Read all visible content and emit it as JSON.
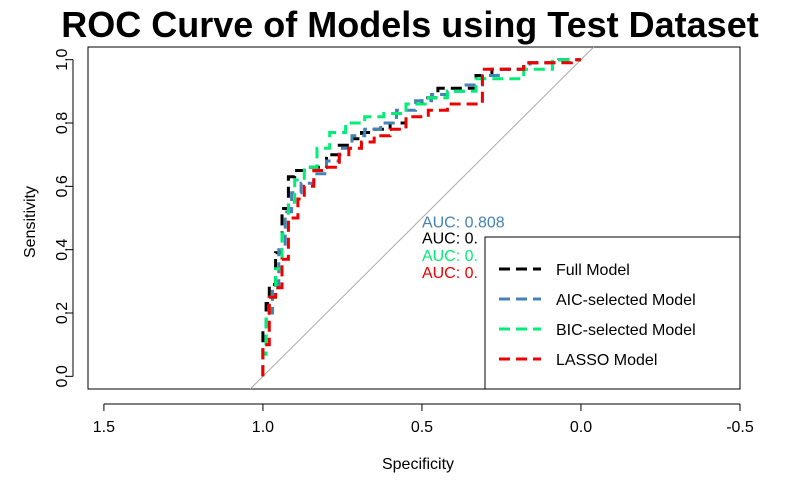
{
  "chart_data": {
    "type": "line",
    "title": "ROC Curve of Models using Test Dataset",
    "xlabel": "Specificity",
    "ylabel": "Sensitivity",
    "xlim": [
      1.55,
      -0.5
    ],
    "ylim": [
      -0.04,
      1.04
    ],
    "x_ticks": [
      1.5,
      1.0,
      0.5,
      0.0,
      -0.5
    ],
    "x_tick_labels": [
      "1.5",
      "1.0",
      "0.5",
      "0.0",
      "-0.5"
    ],
    "y_ticks": [
      0.0,
      0.2,
      0.4,
      0.6,
      0.8,
      1.0
    ],
    "y_tick_labels": [
      "0.0",
      "0.2",
      "0.4",
      "0.6",
      "0.8",
      "1.0"
    ],
    "grid": false,
    "legend_position": "bottom-right",
    "reference_line": {
      "from": [
        1.0,
        0.0
      ],
      "to": [
        0.0,
        1.0
      ],
      "color": "#aaaaaa"
    },
    "auc_labels": [
      {
        "text": "AUC: 0.808",
        "color": "#4682b4",
        "x": 0.5,
        "y": 0.47
      },
      {
        "text": "AUC: 0.",
        "color": "#000000",
        "x": 0.5,
        "y": 0.42
      },
      {
        "text": "AUC: 0.",
        "color": "#00ee76",
        "x": 0.5,
        "y": 0.365
      },
      {
        "text": "AUC: 0.",
        "color": "#ee0000",
        "x": 0.5,
        "y": 0.31
      }
    ],
    "series": [
      {
        "name": "Full Model",
        "color": "#000000",
        "x": [
          1.0,
          1.0,
          0.99,
          0.99,
          0.98,
          0.98,
          0.96,
          0.96,
          0.94,
          0.94,
          0.92,
          0.92,
          0.9,
          0.9,
          0.87,
          0.87,
          0.84,
          0.84,
          0.8,
          0.8,
          0.76,
          0.76,
          0.72,
          0.72,
          0.69,
          0.69,
          0.65,
          0.65,
          0.6,
          0.6,
          0.55,
          0.55,
          0.5,
          0.5,
          0.45,
          0.45,
          0.4,
          0.4,
          0.33,
          0.33,
          0.28,
          0.28,
          0.18,
          0.18,
          0.08,
          0.08,
          0.0
        ],
        "y": [
          0.0,
          0.15,
          0.15,
          0.23,
          0.23,
          0.29,
          0.29,
          0.39,
          0.39,
          0.53,
          0.53,
          0.63,
          0.63,
          0.65,
          0.65,
          0.66,
          0.66,
          0.66,
          0.66,
          0.7,
          0.7,
          0.73,
          0.73,
          0.75,
          0.75,
          0.77,
          0.77,
          0.78,
          0.78,
          0.8,
          0.8,
          0.86,
          0.86,
          0.88,
          0.88,
          0.91,
          0.91,
          0.91,
          0.91,
          0.95,
          0.95,
          0.97,
          0.97,
          0.99,
          0.99,
          1.0,
          1.0
        ]
      },
      {
        "name": "AIC-selected Model",
        "color": "#4682b4",
        "x": [
          1.0,
          1.0,
          0.99,
          0.99,
          0.97,
          0.97,
          0.95,
          0.95,
          0.93,
          0.93,
          0.91,
          0.91,
          0.88,
          0.88,
          0.84,
          0.84,
          0.8,
          0.8,
          0.76,
          0.76,
          0.72,
          0.72,
          0.68,
          0.68,
          0.63,
          0.63,
          0.58,
          0.58,
          0.52,
          0.52,
          0.47,
          0.47,
          0.42,
          0.42,
          0.37,
          0.37,
          0.31,
          0.31,
          0.26,
          0.26,
          0.16,
          0.16,
          0.07,
          0.07,
          0.0
        ],
        "y": [
          0.0,
          0.1,
          0.1,
          0.2,
          0.2,
          0.28,
          0.28,
          0.4,
          0.4,
          0.52,
          0.52,
          0.58,
          0.58,
          0.61,
          0.61,
          0.64,
          0.64,
          0.68,
          0.68,
          0.72,
          0.72,
          0.76,
          0.76,
          0.78,
          0.78,
          0.8,
          0.8,
          0.84,
          0.84,
          0.87,
          0.87,
          0.89,
          0.89,
          0.9,
          0.9,
          0.92,
          0.92,
          0.95,
          0.95,
          0.97,
          0.97,
          0.99,
          0.99,
          1.0,
          1.0
        ]
      },
      {
        "name": "BIC-selected Model",
        "color": "#00ee76",
        "x": [
          1.0,
          1.0,
          0.99,
          0.99,
          0.98,
          0.98,
          0.96,
          0.96,
          0.94,
          0.94,
          0.92,
          0.92,
          0.9,
          0.9,
          0.87,
          0.87,
          0.83,
          0.83,
          0.79,
          0.79,
          0.74,
          0.74,
          0.68,
          0.68,
          0.62,
          0.62,
          0.55,
          0.55,
          0.48,
          0.48,
          0.42,
          0.42,
          0.33,
          0.33,
          0.18,
          0.18,
          0.09,
          0.09,
          0.0
        ],
        "y": [
          0.0,
          0.07,
          0.07,
          0.2,
          0.2,
          0.25,
          0.25,
          0.34,
          0.34,
          0.45,
          0.45,
          0.55,
          0.55,
          0.62,
          0.62,
          0.66,
          0.66,
          0.72,
          0.72,
          0.77,
          0.77,
          0.8,
          0.8,
          0.82,
          0.82,
          0.83,
          0.83,
          0.86,
          0.86,
          0.88,
          0.88,
          0.9,
          0.9,
          0.94,
          0.94,
          0.97,
          0.97,
          1.0,
          1.0
        ]
      },
      {
        "name": "LASSO Model",
        "color": "#ee0000",
        "x": [
          1.0,
          1.0,
          0.98,
          0.98,
          0.96,
          0.96,
          0.94,
          0.94,
          0.92,
          0.92,
          0.89,
          0.89,
          0.87,
          0.87,
          0.84,
          0.84,
          0.8,
          0.8,
          0.76,
          0.76,
          0.73,
          0.73,
          0.69,
          0.69,
          0.65,
          0.65,
          0.6,
          0.6,
          0.55,
          0.55,
          0.48,
          0.48,
          0.42,
          0.42,
          0.31,
          0.31,
          0.18,
          0.18,
          0.03,
          0.03,
          0.0
        ],
        "y": [
          0.0,
          0.1,
          0.1,
          0.25,
          0.25,
          0.28,
          0.28,
          0.37,
          0.37,
          0.5,
          0.5,
          0.56,
          0.56,
          0.6,
          0.6,
          0.65,
          0.65,
          0.66,
          0.66,
          0.7,
          0.7,
          0.72,
          0.72,
          0.74,
          0.74,
          0.76,
          0.76,
          0.78,
          0.78,
          0.82,
          0.82,
          0.84,
          0.84,
          0.86,
          0.86,
          0.97,
          0.97,
          0.99,
          0.99,
          1.0,
          1.0
        ]
      }
    ]
  }
}
